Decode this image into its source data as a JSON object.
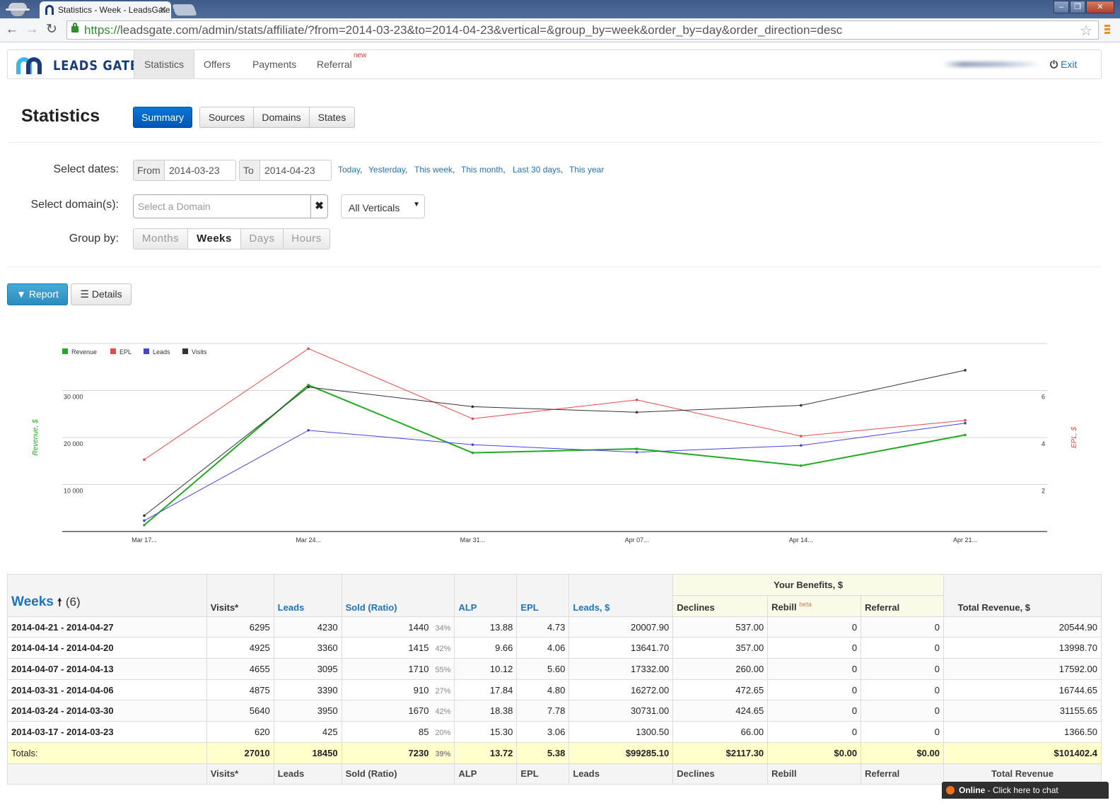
{
  "browser": {
    "tab_title": "Statistics - Week - LeadsGate",
    "url_scheme": "https://",
    "url_rest": "leadsgate.com/admin/stats/affiliate/?from=2014-03-23&to=2014-04-23&vertical=&group_by=week&order_by=day&order_direction=desc"
  },
  "site": {
    "logo_text": "LEADS GATE",
    "nav": [
      "Statistics",
      "Offers",
      "Payments",
      "Referral"
    ],
    "nav_badge": "new",
    "exit_label": "Exit"
  },
  "stats": {
    "title": "Statistics",
    "tabs": [
      "Summary",
      "Sources",
      "Domains",
      "States"
    ],
    "dates_label": "Select dates:",
    "from_label": "From",
    "from_value": "2014-03-23",
    "to_label": "To",
    "to_value": "2014-04-23",
    "quick_links": [
      "Today",
      "Yesterday",
      "This week",
      "This month",
      "Last 30 days",
      "This year"
    ],
    "domain_label": "Select domain(s):",
    "domain_placeholder": "Select a Domain",
    "vertical_selected": "All Verticals",
    "group_label": "Group by:",
    "group_options": [
      "Months",
      "Weeks",
      "Days",
      "Hours"
    ],
    "report_label": "Report",
    "details_label": "Details"
  },
  "chart_data": {
    "type": "line",
    "x": [
      "Mar 17...",
      "Mar 24...",
      "Mar 31...",
      "Apr 07...",
      "Apr 14...",
      "Apr 21..."
    ],
    "series": [
      {
        "name": "Revenue",
        "axis": "left",
        "color": "#22aa22",
        "values": [
          1366.5,
          31155.65,
          16744.65,
          17592.0,
          13998.7,
          20544.9
        ]
      },
      {
        "name": "EPL",
        "axis": "right",
        "color": "#e84a4a",
        "values": [
          3.06,
          7.78,
          4.8,
          5.6,
          4.06,
          4.73
        ]
      },
      {
        "name": "Leads",
        "axis": "left",
        "color": "#4444dd",
        "values": [
          425,
          3950,
          3390,
          3095,
          3360,
          4230
        ]
      },
      {
        "name": "Visits",
        "axis": "left",
        "color": "#333333",
        "values": [
          620,
          5640,
          4875,
          4655,
          4925,
          6295
        ]
      }
    ],
    "count_scale": 5.45,
    "yticks_left": [
      "10 000",
      "20 000",
      "30 000"
    ],
    "yticks_right": [
      "2",
      "4",
      "6"
    ],
    "ylabel_left": "Revenue, $",
    "ylabel_right": "EPL, $",
    "ylim_left": [
      0,
      40000
    ],
    "ylim_right": [
      0,
      8
    ],
    "legend": "top-left",
    "grid": true
  },
  "table": {
    "headers": {
      "weeks": "Weeks",
      "weeks_count": "(6)",
      "visits": "Visits*",
      "leads": "Leads",
      "sold": "Sold (Ratio)",
      "alp": "ALP",
      "epl": "EPL",
      "leads_usd": "Leads, $",
      "benefits": "Your Benefits, $",
      "declines": "Declines",
      "rebill": "Rebill",
      "rebill_badge": "beta",
      "referral": "Referral",
      "total_revenue": "Total Revenue, $"
    },
    "rows": [
      [
        "2014-04-21 - 2014-04-27",
        "6295",
        "4230",
        "1440",
        "34%",
        "13.88",
        "4.73",
        "20007.90",
        "537.00",
        "0",
        "0",
        "20544.90"
      ],
      [
        "2014-04-14 - 2014-04-20",
        "4925",
        "3360",
        "1415",
        "42%",
        "9.66",
        "4.06",
        "13641.70",
        "357.00",
        "0",
        "0",
        "13998.70"
      ],
      [
        "2014-04-07 - 2014-04-13",
        "4655",
        "3095",
        "1710",
        "55%",
        "10.12",
        "5.60",
        "17332.00",
        "260.00",
        "0",
        "0",
        "17592.00"
      ],
      [
        "2014-03-31 - 2014-04-06",
        "4875",
        "3390",
        "910",
        "27%",
        "17.84",
        "4.80",
        "16272.00",
        "472.65",
        "0",
        "0",
        "16744.65"
      ],
      [
        "2014-03-24 - 2014-03-30",
        "5640",
        "3950",
        "1670",
        "42%",
        "18.38",
        "7.78",
        "30731.00",
        "424.65",
        "0",
        "0",
        "31155.65"
      ],
      [
        "2014-03-17 - 2014-03-23",
        "620",
        "425",
        "85",
        "20%",
        "15.30",
        "3.06",
        "1300.50",
        "66.00",
        "0",
        "0",
        "1366.50"
      ]
    ],
    "totals": [
      "Totals:",
      "27010",
      "18450",
      "7230",
      "39%",
      "13.72",
      "5.38",
      "$99285.10",
      "$2117.30",
      "$0.00",
      "$0.00",
      "$101402.4"
    ],
    "footer": [
      "",
      "Visits*",
      "Leads",
      "Sold (Ratio)",
      "ALP",
      "EPL",
      "Leads",
      "Declines",
      "Rebill",
      "Referral",
      "Total Revenue"
    ]
  },
  "chat": {
    "status": "Online",
    "text": " - Click here to chat"
  }
}
